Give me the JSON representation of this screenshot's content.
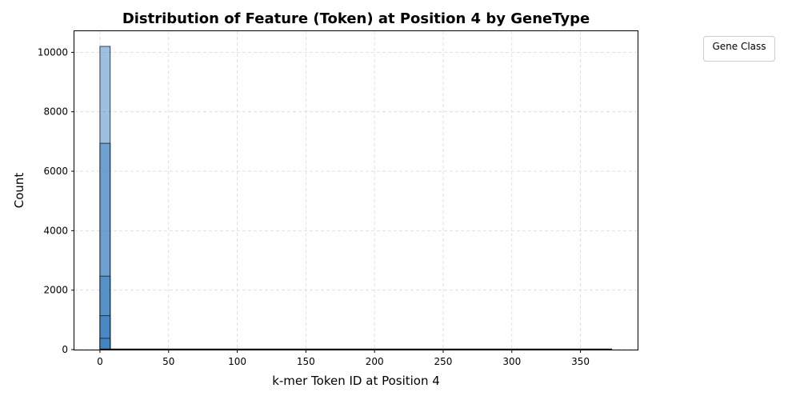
{
  "chart_data": {
    "type": "bar",
    "title": "Distribution of Feature (Token) at Position 4 by GeneType",
    "xlabel": "k-mer Token ID at Position 4",
    "ylabel": "Count",
    "xlim": [
      -18.6,
      391.6
    ],
    "ylim": [
      0,
      10710
    ],
    "xticks": [
      0,
      50,
      100,
      150,
      200,
      250,
      300,
      350
    ],
    "yticks": [
      0,
      2000,
      4000,
      6000,
      8000,
      10000
    ],
    "grid": true,
    "legend": {
      "title": "Gene Class",
      "placement": "top-right outside",
      "entries": []
    },
    "bin_width": 7.46,
    "bin_range": [
      0,
      373
    ],
    "series": [
      {
        "bins": [
          [
            0,
            7.46
          ]
        ],
        "values": [
          10200
        ]
      },
      {
        "bins": [
          [
            0,
            7.46
          ]
        ],
        "values": [
          6940
        ]
      },
      {
        "bins": [
          [
            0,
            7.46
          ]
        ],
        "values": [
          2470
        ]
      },
      {
        "bins": [
          [
            0,
            7.46
          ]
        ],
        "values": [
          1140
        ]
      },
      {
        "bins": [
          [
            0,
            7.46
          ]
        ],
        "values": [
          380
        ]
      }
    ],
    "colors": {
      "bar_fill": "#3b82c2",
      "bar_edge": "#1a1a1a",
      "grid": "#d9d9d9"
    }
  }
}
